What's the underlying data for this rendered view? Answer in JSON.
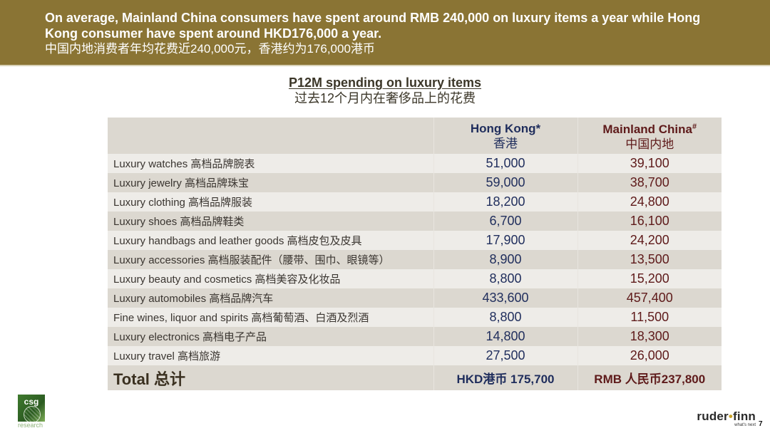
{
  "header": {
    "line1": "On average, Mainland China consumers have spent around RMB 240,000 on luxury items a year while Hong",
    "line2": "Kong consumer have spent around HKD176,000 a year.",
    "line_cn": "中国内地消费者年均花费近240,000元，香港约为176,000港币",
    "band_color": "#8a7434"
  },
  "subtitle": {
    "en": "P12M spending on luxury items",
    "cn": "过去12个月内在奢侈品上的花费"
  },
  "table": {
    "columns": [
      {
        "label": "",
        "label_cn": ""
      },
      {
        "label": "Hong Kong",
        "mark": "*",
        "label_cn": "香港",
        "color": "#1f2d5c"
      },
      {
        "label": "Mainland China",
        "mark": "#",
        "label_cn": "中国内地",
        "color": "#5e1a1a"
      }
    ],
    "rows": [
      {
        "label": "Luxury watches 高档品牌腕表",
        "hk": "51,000",
        "cn": "39,100"
      },
      {
        "label": "Luxury jewelry 高档品牌珠宝",
        "hk": "59,000",
        "cn": "38,700"
      },
      {
        "label": "Luxury clothing 高档品牌服装",
        "hk": "18,200",
        "cn": "24,800"
      },
      {
        "label": "Luxury shoes 高档品牌鞋类",
        "hk": "6,700",
        "cn": "16,100"
      },
      {
        "label": "Luxury handbags and leather goods 高档皮包及皮具",
        "hk": "17,900",
        "cn": "24,200"
      },
      {
        "label": "Luxury accessories 高档服装配件（腰带、围巾、眼镜等）",
        "hk": "8,900",
        "cn": "13,500"
      },
      {
        "label": "Luxury beauty and cosmetics 高档美容及化妆品",
        "hk": "8,800",
        "cn": "15,200"
      },
      {
        "label": "Luxury automobiles 高档品牌汽车",
        "hk": "433,600",
        "cn": "457,400"
      },
      {
        "label": "Fine wines, liquor and spirits 高档葡萄酒、白酒及烈酒",
        "hk": "8,800",
        "cn": "11,500"
      },
      {
        "label": "Luxury electronics 高档电子产品",
        "hk": "14,800",
        "cn": "18,300"
      },
      {
        "label": "Luxury travel 高档旅游",
        "hk": "27,500",
        "cn": "26,000"
      }
    ],
    "total": {
      "label": "Total 总计",
      "hk": "HKD港币 175,700",
      "cn": "RMB 人民币237,800"
    }
  },
  "footer": {
    "csg_logo_text": "csg",
    "csg_logo_sub": "research",
    "rf_logo_left": "ruder",
    "rf_logo_dot": "•",
    "rf_logo_right": "finn",
    "rf_tagline": "what's next",
    "page_number": "7"
  }
}
